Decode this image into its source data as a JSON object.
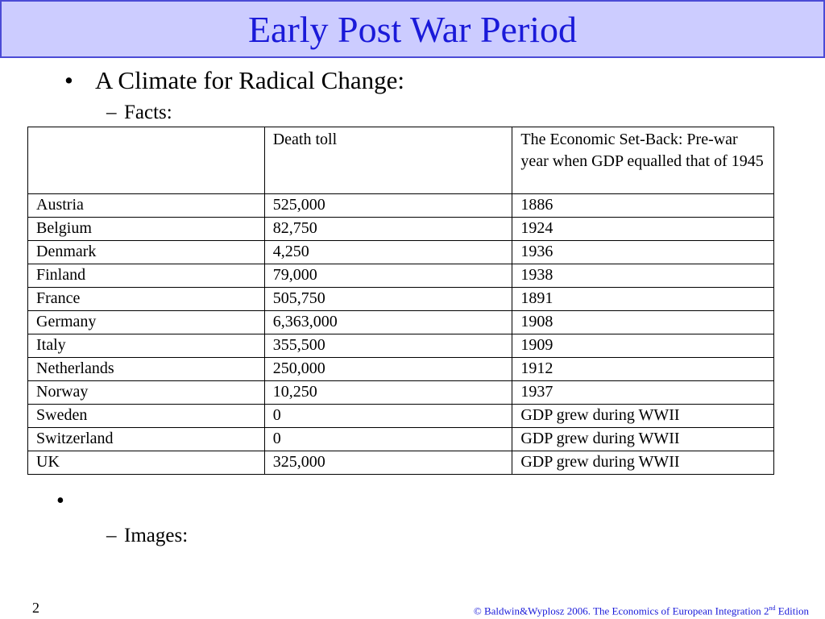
{
  "title": "Early Post War Period",
  "bullets": {
    "main": "A Climate for Radical Change:",
    "facts_label": "Facts:",
    "images_label": "Images:",
    "bullet_char": "•",
    "dash_char": "–"
  },
  "table": {
    "headers": [
      "",
      "Death toll",
      "The Economic Set-Back: Pre-war year when GDP equalled that of 1945"
    ],
    "rows": [
      [
        "Austria",
        "525,000",
        "1886"
      ],
      [
        "Belgium",
        "82,750",
        "1924"
      ],
      [
        "Denmark",
        "4,250",
        "1936"
      ],
      [
        "Finland",
        "79,000",
        "1938"
      ],
      [
        "France",
        "505,750",
        "1891"
      ],
      [
        "Germany",
        "6,363,000",
        "1908"
      ],
      [
        "Italy",
        "355,500",
        "1909"
      ],
      [
        "Netherlands",
        "250,000",
        "1912"
      ],
      [
        "Norway",
        "10,250",
        "1937"
      ],
      [
        "Sweden",
        "0",
        "GDP grew during WWII"
      ],
      [
        "Switzerland",
        "0",
        "GDP grew during WWII"
      ],
      [
        "UK",
        "325,000",
        "GDP grew during WWII"
      ]
    ]
  },
  "footer": {
    "page_number": "2",
    "copyright_prefix": "© Baldwin&Wyplosz 2006. The Economics of European Integration 2",
    "superscript": "nd",
    "suffix": " Edition"
  },
  "colors": {
    "title_bg": "#ccccff",
    "title_border": "#4b4bd6",
    "title_text": "#1a1ad9"
  }
}
